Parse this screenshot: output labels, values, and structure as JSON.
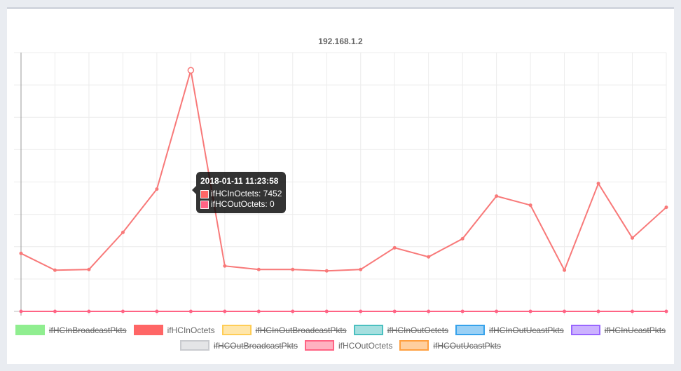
{
  "chart_data": {
    "type": "line",
    "title": "192.168.1.2",
    "ylim": [
      0,
      8000
    ],
    "grid": true,
    "legend_position": "bottom",
    "x_count": 20,
    "series": [
      {
        "name": "ifHCInOctets",
        "color": "#ff6384",
        "line_color": "#f87979",
        "fill": "#ff6666",
        "hidden": false,
        "values": [
          1793,
          1274,
          1296,
          2441,
          3780,
          7452,
          1404,
          1296,
          1296,
          1253,
          1296,
          1966,
          1685,
          2246,
          3564,
          3283,
          1274,
          3953,
          2268,
          3218
        ]
      },
      {
        "name": "ifHCOutOctets",
        "color": "#ff6384",
        "fill": "#ffb1c1",
        "hidden": false,
        "values": [
          0,
          0,
          0,
          0,
          0,
          0,
          0,
          0,
          0,
          0,
          0,
          0,
          0,
          0,
          0,
          0,
          0,
          0,
          0,
          0
        ]
      }
    ],
    "legend": [
      {
        "name": "ifHCInBroadcastPkts",
        "fill": "#90ee90",
        "border": "#90ee90",
        "hidden": true
      },
      {
        "name": "ifHCInOctets",
        "fill": "#ff6666",
        "border": "#ff6666",
        "hidden": false
      },
      {
        "name": "ifHCInOutBroadcastPkts",
        "fill": "#ffe6aa",
        "border": "#ffcd56",
        "hidden": true
      },
      {
        "name": "ifHCInOutOctets",
        "fill": "#a5dfdf",
        "border": "#4bc0c0",
        "hidden": true
      },
      {
        "name": "ifHCInOutUcastPkts",
        "fill": "#9ad0f5",
        "border": "#36a2eb",
        "hidden": true
      },
      {
        "name": "ifHCInUcastPkts",
        "fill": "#ccb2ff",
        "border": "#9966ff",
        "hidden": true
      },
      {
        "name": "ifHCOutBroadcastPkts",
        "fill": "#e4e5e7",
        "border": "#c9cbcf",
        "hidden": true
      },
      {
        "name": "ifHCOutOctets",
        "fill": "#ffb1c1",
        "border": "#ff6384",
        "hidden": false
      },
      {
        "name": "ifHCOutUcastPkts",
        "fill": "#ffcf9f",
        "border": "#ff9f40",
        "hidden": true
      }
    ],
    "tooltip": {
      "index": 5,
      "title": "2018-01-11 11:23:58",
      "rows": [
        {
          "label": "ifHCInOctets: 7452",
          "fill": "#ff6666"
        },
        {
          "label": "ifHCOutOctets: 0",
          "fill": "#ff6384"
        }
      ]
    }
  }
}
